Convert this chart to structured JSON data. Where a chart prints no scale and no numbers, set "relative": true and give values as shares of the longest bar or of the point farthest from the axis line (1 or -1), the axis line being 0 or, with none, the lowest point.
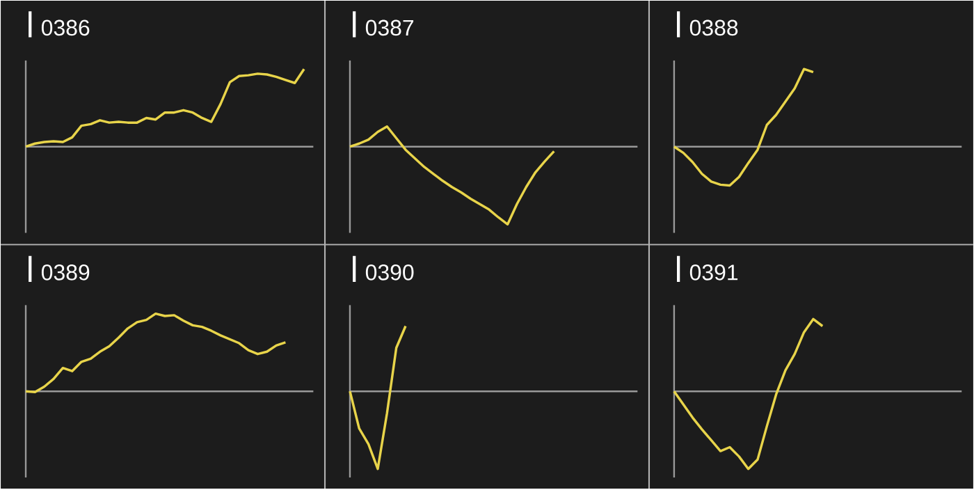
{
  "chart_data": [
    {
      "type": "line",
      "title": "0386",
      "relative": true,
      "color": "#e8d44a",
      "categories": [
        null,
        null,
        null,
        null,
        null,
        null,
        null,
        null,
        null,
        null,
        null,
        null,
        null,
        null,
        null,
        null,
        null,
        null,
        null,
        null,
        null,
        null,
        null,
        null,
        null,
        null,
        null,
        null,
        null,
        null,
        null,
        null
      ],
      "values": [
        0,
        0.04,
        0.06,
        0.07,
        0.06,
        0.12,
        0.27,
        0.29,
        0.34,
        0.31,
        0.32,
        0.31,
        0.31,
        0.37,
        0.35,
        0.44,
        0.44,
        0.47,
        0.44,
        0.37,
        0.32,
        0.55,
        0.83,
        0.91,
        0.92,
        0.94,
        0.93,
        0.9,
        0.86,
        0.82,
        1,
        null
      ]
    },
    {
      "type": "line",
      "title": "0387",
      "relative": true,
      "color": "#e8d44a",
      "categories": [
        null,
        null,
        null,
        null,
        null,
        null,
        null,
        null,
        null,
        null,
        null,
        null,
        null,
        null,
        null,
        null,
        null,
        null,
        null,
        null,
        null,
        null,
        null,
        null,
        null,
        null,
        null,
        null,
        null,
        null,
        null,
        null
      ],
      "values": [
        0,
        0.04,
        0.09,
        0.19,
        0.26,
        0.11,
        -0.04,
        -0.15,
        -0.26,
        -0.35,
        -0.44,
        -0.52,
        -0.59,
        -0.67,
        -0.74,
        -0.81,
        -0.91,
        -1,
        -0.74,
        -0.52,
        -0.33,
        -0.19,
        -0.06,
        null,
        null,
        null,
        null,
        null,
        null,
        null,
        null,
        null
      ]
    },
    {
      "type": "line",
      "title": "0388",
      "relative": true,
      "color": "#e8d44a",
      "categories": [
        null,
        null,
        null,
        null,
        null,
        null,
        null,
        null,
        null,
        null,
        null,
        null,
        null,
        null,
        null,
        null,
        null,
        null,
        null,
        null,
        null,
        null,
        null,
        null,
        null,
        null,
        null,
        null,
        null,
        null,
        null,
        null
      ],
      "values": [
        0,
        -0.08,
        -0.2,
        -0.35,
        -0.45,
        -0.49,
        -0.5,
        -0.39,
        -0.21,
        -0.04,
        0.28,
        0.41,
        0.58,
        0.75,
        1,
        0.96,
        null,
        null,
        null,
        null,
        null,
        null,
        null,
        null,
        null,
        null,
        null,
        null,
        null,
        null,
        null,
        null
      ]
    },
    {
      "type": "line",
      "title": "0389",
      "relative": true,
      "color": "#e8d44a",
      "categories": [
        null,
        null,
        null,
        null,
        null,
        null,
        null,
        null,
        null,
        null,
        null,
        null,
        null,
        null,
        null,
        null,
        null,
        null,
        null,
        null,
        null,
        null,
        null,
        null,
        null,
        null,
        null,
        null,
        null,
        null,
        null,
        null
      ],
      "values": [
        0,
        -0.01,
        0.06,
        0.16,
        0.3,
        0.26,
        0.38,
        0.42,
        0.51,
        0.58,
        0.69,
        0.81,
        0.89,
        0.92,
        1,
        0.97,
        0.98,
        0.91,
        0.85,
        0.83,
        0.78,
        0.72,
        0.67,
        0.62,
        0.53,
        0.48,
        0.51,
        0.59,
        0.63,
        null,
        null,
        null
      ]
    },
    {
      "type": "line",
      "title": "0390",
      "relative": true,
      "color": "#e8d44a",
      "categories": [
        null,
        null,
        null,
        null,
        null,
        null,
        null,
        null,
        null,
        null,
        null,
        null,
        null,
        null,
        null,
        null,
        null,
        null,
        null,
        null,
        null,
        null,
        null,
        null,
        null,
        null,
        null,
        null,
        null,
        null,
        null,
        null
      ],
      "values": [
        0,
        -0.48,
        -0.68,
        -1,
        -0.28,
        0.56,
        0.84,
        null,
        null,
        null,
        null,
        null,
        null,
        null,
        null,
        null,
        null,
        null,
        null,
        null,
        null,
        null,
        null,
        null,
        null,
        null,
        null,
        null,
        null,
        null,
        null,
        null
      ]
    },
    {
      "type": "line",
      "title": "0391",
      "relative": true,
      "color": "#e8d44a",
      "categories": [
        null,
        null,
        null,
        null,
        null,
        null,
        null,
        null,
        null,
        null,
        null,
        null,
        null,
        null,
        null,
        null,
        null,
        null,
        null,
        null,
        null,
        null,
        null,
        null,
        null,
        null,
        null,
        null,
        null,
        null,
        null,
        null
      ],
      "values": [
        0,
        -0.17,
        -0.34,
        -0.49,
        -0.63,
        -0.77,
        -0.72,
        -0.84,
        -1,
        -0.88,
        -0.45,
        -0.04,
        0.27,
        0.48,
        0.76,
        0.93,
        0.84,
        null,
        null,
        null,
        null,
        null,
        null,
        null,
        null,
        null,
        null,
        null,
        null,
        null,
        null,
        null
      ]
    }
  ]
}
